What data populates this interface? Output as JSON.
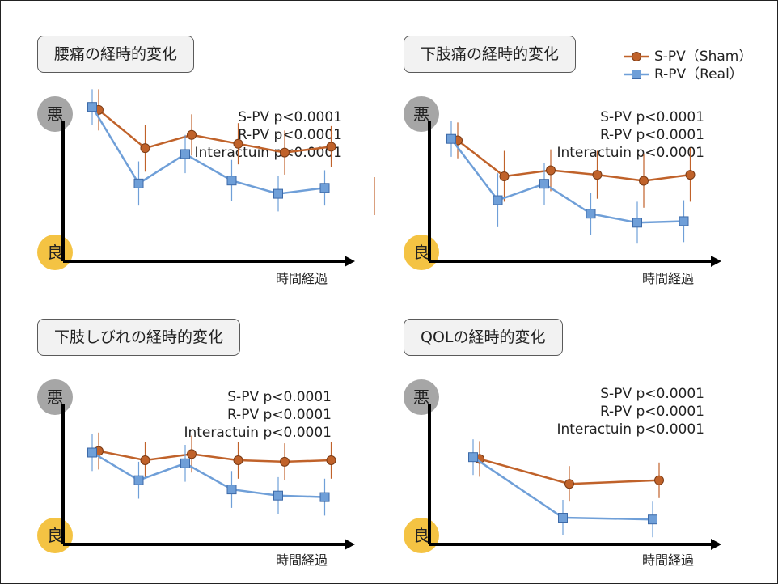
{
  "legend": {
    "items": [
      {
        "label": "S-PV（Sham）",
        "color": "#c0622a",
        "marker": "circle"
      },
      {
        "label": "R-PV（Real）",
        "color": "#6f9fd8",
        "marker": "square"
      }
    ]
  },
  "badges": {
    "bad": "悪",
    "good": "良"
  },
  "chart_data": [
    {
      "type": "line",
      "title": "腰痛の経時的変化",
      "xlabel": "時間経過",
      "stats": [
        "S-PV p<0.0001",
        "R-PV p<0.0001",
        "Interactuin p<0.0001"
      ],
      "ylim": [
        0,
        100
      ],
      "x": [
        0,
        1,
        2,
        3,
        4,
        5
      ],
      "series": [
        {
          "name": "S-PV（Sham）",
          "values": [
            88,
            62,
            71,
            65,
            59,
            63
          ],
          "err": [
            14,
            16,
            14,
            14,
            15,
            14
          ]
        },
        {
          "name": "R-PV（Real）",
          "values": [
            90,
            38,
            58,
            40,
            31,
            35
          ],
          "err": [
            12,
            15,
            13,
            14,
            12,
            12
          ]
        }
      ]
    },
    {
      "type": "line",
      "title": "下肢痛の経時的変化",
      "xlabel": "時間経過",
      "stats": [
        "S-PV p<0.0001",
        "R-PV p<0.0001",
        "Interactuin p<0.0001"
      ],
      "ylim": [
        0,
        100
      ],
      "x": [
        0,
        1,
        2,
        3,
        4,
        5
      ],
      "series": [
        {
          "name": "S-PV（Sham）",
          "values": [
            77,
            53,
            57,
            54,
            50,
            54
          ],
          "err": [
            12,
            17,
            14,
            16,
            18,
            18
          ]
        },
        {
          "name": "R-PV（Real）",
          "values": [
            78,
            37,
            48,
            28,
            22,
            23
          ],
          "err": [
            12,
            18,
            14,
            14,
            14,
            14
          ]
        }
      ]
    },
    {
      "type": "line",
      "title": "下肢しびれの経時的変化",
      "xlabel": "時間経過",
      "stats": [
        "S-PV p<0.0001",
        "R-PV p<0.0001",
        "Interactuin p<0.0001"
      ],
      "ylim": [
        0,
        100
      ],
      "x": [
        0,
        1,
        2,
        3,
        4,
        5
      ],
      "series": [
        {
          "name": "S-PV（Sham）",
          "values": [
            56,
            50,
            54,
            50,
            49,
            50
          ],
          "err": [
            12,
            12,
            12,
            12,
            12,
            12
          ]
        },
        {
          "name": "R-PV（Real）",
          "values": [
            55,
            37,
            48,
            31,
            27,
            26
          ],
          "err": [
            12,
            12,
            12,
            12,
            12,
            12
          ]
        }
      ]
    },
    {
      "type": "line",
      "title": "QOLの経時的変化",
      "xlabel": "時間経過",
      "stats": [
        "S-PV p<0.0001",
        "R-PV p<0.0001",
        "Interactuin p<0.0001"
      ],
      "ylim": [
        0,
        100
      ],
      "x": [
        0,
        1,
        2,
        3
      ],
      "series": [
        {
          "name": "S-PV（Sham）",
          "values": [
            53,
            39,
            41,
            null
          ],
          "err": [
            10,
            10,
            10,
            0
          ]
        },
        {
          "name": "R-PV（Real）",
          "values": [
            54,
            20,
            19,
            null
          ],
          "err": [
            10,
            10,
            10,
            0
          ]
        }
      ]
    }
  ]
}
